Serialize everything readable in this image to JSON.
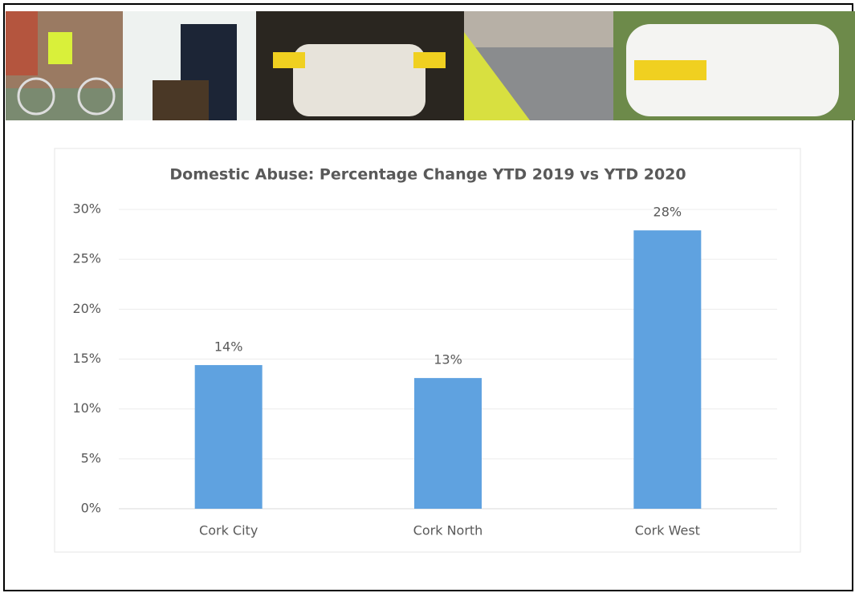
{
  "chart_data": {
    "type": "bar",
    "title": "Domestic Abuse: Percentage Change YTD 2019 vs YTD 2020",
    "categories": [
      "Cork City",
      "Cork North",
      "Cork West"
    ],
    "values": [
      14.4,
      13.1,
      27.9
    ],
    "value_labels": [
      "14%",
      "13%",
      "28%"
    ],
    "color": "#5fa2e0",
    "ylim": [
      0,
      30
    ],
    "yticks": [
      {
        "value": 0,
        "label": "0%"
      },
      {
        "value": 5,
        "label": "5%"
      },
      {
        "value": 10,
        "label": "10%"
      },
      {
        "value": 15,
        "label": "15%"
      },
      {
        "value": 20,
        "label": "20%"
      },
      {
        "value": 25,
        "label": "25%"
      },
      {
        "value": 30,
        "label": "30%"
      }
    ],
    "grid": true
  }
}
